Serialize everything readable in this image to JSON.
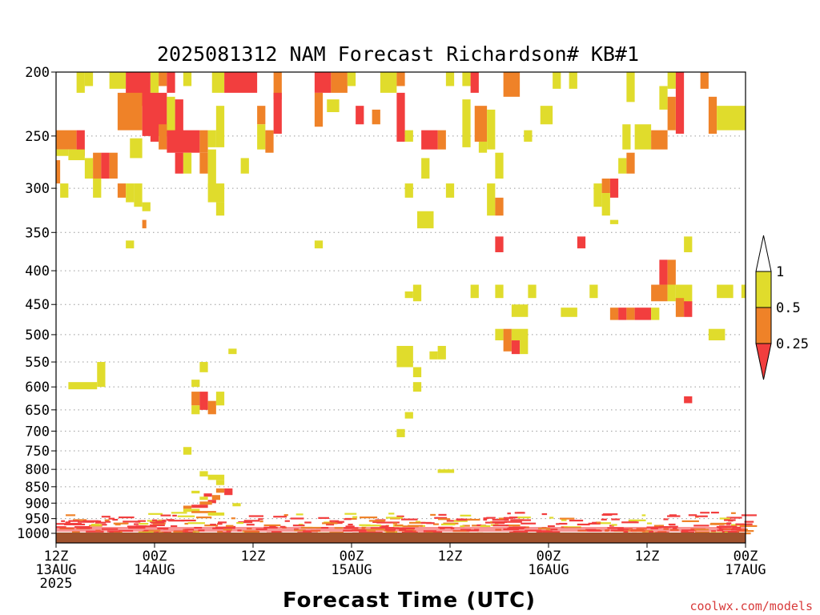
{
  "chart_data": {
    "type": "heatmap",
    "title": "2025081312 NAM Forecast Richardson# KB#1",
    "xlabel": "Forecast Time (UTC)",
    "credit": "coolwx.com/models",
    "y_axis": {
      "scale": "pressure (inverted)",
      "range": [
        1000,
        200
      ],
      "ticks": [
        "200",
        "250",
        "300",
        "350",
        "400",
        "450",
        "500",
        "550",
        "600",
        "650",
        "700",
        "750",
        "800",
        "850",
        "900",
        "950",
        "1000"
      ]
    },
    "x_axis": {
      "range_hours": [
        0,
        84
      ],
      "ticks": [
        {
          "hour": 0,
          "line1": "12Z",
          "line2": "13AUG",
          "line3": "2025"
        },
        {
          "hour": 12,
          "line1": "00Z",
          "line2": "14AUG",
          "line3": ""
        },
        {
          "hour": 24,
          "line1": "12Z",
          "line2": "",
          "line3": ""
        },
        {
          "hour": 36,
          "line1": "00Z",
          "line2": "15AUG",
          "line3": ""
        },
        {
          "hour": 48,
          "line1": "12Z",
          "line2": "",
          "line3": ""
        },
        {
          "hour": 60,
          "line1": "00Z",
          "line2": "16AUG",
          "line3": ""
        },
        {
          "hour": 72,
          "line1": "12Z",
          "line2": "",
          "line3": ""
        },
        {
          "hour": 84,
          "line1": "00Z",
          "line2": "17AUG",
          "line3": ""
        }
      ]
    },
    "legend": {
      "placement": "right",
      "labels": [
        "1",
        "0.5",
        "0.25"
      ],
      "colors": {
        "gt1": "#ffffff",
        "b05_1": "#e0dc2c",
        "b025_05": "#ef8228",
        "lt025": "#f23e3e"
      }
    },
    "colors": {
      "yellow": "#e0dc2c",
      "orange": "#ef8228",
      "red": "#f23e3e",
      "ground": "#a0522d"
    },
    "cells_note": "cells: [hour_start, hour_end, pressure_top_hPa, pressure_bottom_hPa, category]; category: y=0.5-1, o=0.25-0.5, r=<0.25",
    "cells": [
      [
        2.5,
        3.5,
        200,
        215,
        "y"
      ],
      [
        3.5,
        4.5,
        200,
        210,
        "y"
      ],
      [
        6.5,
        8.5,
        200,
        212,
        "y"
      ],
      [
        8.5,
        11.5,
        200,
        225,
        "r"
      ],
      [
        11.5,
        12.5,
        200,
        215,
        "y"
      ],
      [
        12.5,
        13.5,
        200,
        210,
        "o"
      ],
      [
        13.5,
        14.5,
        200,
        215,
        "r"
      ],
      [
        15.5,
        16.5,
        200,
        210,
        "y"
      ],
      [
        19,
        20.5,
        200,
        215,
        "y"
      ],
      [
        20.5,
        24.5,
        200,
        215,
        "r"
      ],
      [
        26.5,
        27.5,
        200,
        220,
        "o"
      ],
      [
        31.5,
        33.5,
        200,
        215,
        "r"
      ],
      [
        33.5,
        35.5,
        200,
        215,
        "o"
      ],
      [
        35.5,
        36.5,
        200,
        210,
        "y"
      ],
      [
        39.5,
        41.5,
        200,
        215,
        "y"
      ],
      [
        41.5,
        42.5,
        200,
        210,
        "o"
      ],
      [
        47.5,
        48.5,
        200,
        210,
        "y"
      ],
      [
        49.5,
        50.5,
        200,
        210,
        "y"
      ],
      [
        50.5,
        51.5,
        200,
        215,
        "r"
      ],
      [
        54.5,
        56.5,
        200,
        218,
        "o"
      ],
      [
        60.5,
        61.5,
        200,
        212,
        "y"
      ],
      [
        62.5,
        63.5,
        200,
        212,
        "y"
      ],
      [
        69.5,
        70.5,
        200,
        222,
        "y"
      ],
      [
        74.5,
        75.5,
        200,
        212,
        "y"
      ],
      [
        75.5,
        76.5,
        200,
        248,
        "r"
      ],
      [
        78.5,
        79.5,
        200,
        212,
        "o"
      ],
      [
        7.5,
        10.5,
        215,
        245,
        "o"
      ],
      [
        10.5,
        13.5,
        215,
        250,
        "r"
      ],
      [
        13.5,
        14.5,
        218,
        255,
        "y"
      ],
      [
        14.5,
        15.5,
        220,
        255,
        "r"
      ],
      [
        19.5,
        20.5,
        225,
        260,
        "y"
      ],
      [
        24.5,
        25.5,
        225,
        240,
        "o"
      ],
      [
        26.5,
        27.5,
        215,
        248,
        "r"
      ],
      [
        31.5,
        32.5,
        215,
        242,
        "o"
      ],
      [
        33,
        34.5,
        220,
        230,
        "y"
      ],
      [
        36.5,
        37.5,
        225,
        240,
        "r"
      ],
      [
        38.5,
        39.5,
        228,
        240,
        "o"
      ],
      [
        41.5,
        42.5,
        215,
        255,
        "r"
      ],
      [
        49.5,
        50.5,
        220,
        260,
        "y"
      ],
      [
        51,
        52.5,
        225,
        255,
        "o"
      ],
      [
        52.5,
        53.5,
        228,
        262,
        "y"
      ],
      [
        59,
        60.5,
        225,
        240,
        "y"
      ],
      [
        74.5,
        75.5,
        218,
        245,
        "o"
      ],
      [
        79.5,
        80.5,
        218,
        248,
        "o"
      ],
      [
        80.5,
        84,
        225,
        245,
        "y"
      ],
      [
        73.5,
        74.5,
        210,
        228,
        "y"
      ],
      [
        11.5,
        12.5,
        245,
        255,
        "r"
      ],
      [
        12.5,
        13.5,
        240,
        262,
        "o"
      ],
      [
        13.5,
        17.5,
        245,
        265,
        "r"
      ],
      [
        17.5,
        18.5,
        245,
        265,
        "o"
      ],
      [
        18.5,
        19.5,
        245,
        260,
        "y"
      ],
      [
        9,
        10.5,
        252,
        270,
        "y"
      ],
      [
        0,
        2.5,
        245,
        262,
        "o"
      ],
      [
        2.5,
        3.5,
        245,
        268,
        "r"
      ],
      [
        0,
        1.5,
        262,
        268,
        "y"
      ],
      [
        1.5,
        3.5,
        262,
        272,
        "y"
      ],
      [
        24.5,
        25.5,
        240,
        262,
        "y"
      ],
      [
        25.5,
        26.5,
        245,
        265,
        "o"
      ],
      [
        42.5,
        43.5,
        245,
        255,
        "y"
      ],
      [
        44.5,
        46.5,
        245,
        262,
        "r"
      ],
      [
        46.5,
        47.5,
        245,
        262,
        "o"
      ],
      [
        51.5,
        52.5,
        255,
        265,
        "y"
      ],
      [
        57,
        58,
        245,
        255,
        "y"
      ],
      [
        69,
        70,
        240,
        262,
        "y"
      ],
      [
        70.5,
        72.5,
        240,
        262,
        "y"
      ],
      [
        72.5,
        74.5,
        245,
        262,
        "o"
      ],
      [
        3.5,
        4.5,
        270,
        290,
        "y"
      ],
      [
        4.5,
        5.5,
        265,
        290,
        "o"
      ],
      [
        5.5,
        6.5,
        265,
        290,
        "r"
      ],
      [
        6.5,
        7.5,
        265,
        290,
        "o"
      ],
      [
        14.5,
        15.5,
        265,
        285,
        "r"
      ],
      [
        15.5,
        16.5,
        265,
        285,
        "y"
      ],
      [
        17.5,
        18.5,
        265,
        285,
        "o"
      ],
      [
        18.5,
        19.5,
        262,
        300,
        "y"
      ],
      [
        22.5,
        23.5,
        270,
        285,
        "y"
      ],
      [
        44.5,
        45.5,
        270,
        290,
        "y"
      ],
      [
        53.5,
        54.5,
        265,
        290,
        "y"
      ],
      [
        68.5,
        69.5,
        270,
        285,
        "y"
      ],
      [
        69.5,
        70.5,
        265,
        285,
        "o"
      ],
      [
        0,
        0.5,
        272,
        295,
        "o"
      ],
      [
        0.5,
        1.5,
        295,
        310,
        "y"
      ],
      [
        4.5,
        5.5,
        290,
        310,
        "y"
      ],
      [
        7.5,
        8.5,
        295,
        310,
        "o"
      ],
      [
        8.5,
        9.5,
        295,
        315,
        "y"
      ],
      [
        9.5,
        10.5,
        295,
        320,
        "y"
      ],
      [
        10.5,
        11.5,
        315,
        325,
        "y"
      ],
      [
        18.5,
        20.5,
        295,
        315,
        "y"
      ],
      [
        19.5,
        20.5,
        315,
        330,
        "y"
      ],
      [
        42.5,
        43.5,
        295,
        310,
        "y"
      ],
      [
        47.5,
        48.5,
        295,
        310,
        "y"
      ],
      [
        52.5,
        53.5,
        295,
        330,
        "y"
      ],
      [
        53.5,
        54.5,
        310,
        330,
        "o"
      ],
      [
        65.5,
        66.5,
        295,
        320,
        "y"
      ],
      [
        66.5,
        67.5,
        290,
        305,
        "o"
      ],
      [
        67.5,
        68.5,
        290,
        310,
        "r"
      ],
      [
        66.5,
        67.5,
        305,
        330,
        "y"
      ],
      [
        44,
        46,
        325,
        345,
        "y"
      ],
      [
        10.5,
        11,
        335,
        345,
        "o"
      ],
      [
        8.5,
        9.5,
        360,
        370,
        "y"
      ],
      [
        31.5,
        32.5,
        360,
        370,
        "y"
      ],
      [
        53.5,
        54.5,
        355,
        375,
        "r"
      ],
      [
        63.5,
        64.5,
        355,
        370,
        "r"
      ],
      [
        76.5,
        77.5,
        355,
        375,
        "y"
      ],
      [
        67.5,
        68.5,
        335,
        340,
        "y"
      ],
      [
        73.5,
        74.5,
        385,
        420,
        "r"
      ],
      [
        74.5,
        75.5,
        385,
        420,
        "o"
      ],
      [
        72.5,
        74.5,
        420,
        445,
        "o"
      ],
      [
        74.5,
        75.5,
        420,
        445,
        "y"
      ],
      [
        75.5,
        77.5,
        420,
        450,
        "y"
      ],
      [
        75.5,
        76.5,
        440,
        470,
        "o"
      ],
      [
        76.5,
        77.5,
        445,
        470,
        "r"
      ],
      [
        67.5,
        68.5,
        455,
        475,
        "o"
      ],
      [
        68.5,
        69.5,
        455,
        475,
        "r"
      ],
      [
        69.5,
        70.5,
        455,
        475,
        "o"
      ],
      [
        70.5,
        72.5,
        455,
        475,
        "r"
      ],
      [
        72.5,
        73.5,
        455,
        475,
        "y"
      ],
      [
        43.5,
        44.5,
        420,
        445,
        "y"
      ],
      [
        42.5,
        43.5,
        430,
        440,
        "y"
      ],
      [
        50.5,
        51.5,
        420,
        440,
        "y"
      ],
      [
        53.5,
        54.5,
        420,
        440,
        "y"
      ],
      [
        57.5,
        58.5,
        420,
        440,
        "y"
      ],
      [
        65,
        66,
        420,
        440,
        "y"
      ],
      [
        80.5,
        82.5,
        420,
        440,
        "y"
      ],
      [
        83.5,
        84,
        420,
        440,
        "y"
      ],
      [
        55.5,
        57.5,
        450,
        470,
        "y"
      ],
      [
        61.5,
        63.5,
        455,
        470,
        "y"
      ],
      [
        53.5,
        54.5,
        490,
        510,
        "y"
      ],
      [
        54.5,
        55.5,
        490,
        530,
        "o"
      ],
      [
        55.5,
        56.5,
        510,
        535,
        "r"
      ],
      [
        55.5,
        57.5,
        490,
        510,
        "y"
      ],
      [
        56.5,
        57.5,
        510,
        535,
        "y"
      ],
      [
        79.5,
        81.5,
        490,
        510,
        "y"
      ],
      [
        41.5,
        43.5,
        520,
        560,
        "y"
      ],
      [
        43.5,
        44.5,
        560,
        580,
        "y"
      ],
      [
        45.5,
        46.5,
        530,
        545,
        "y"
      ],
      [
        46.5,
        47.5,
        520,
        545,
        "y"
      ],
      [
        43.5,
        44.5,
        590,
        610,
        "y"
      ],
      [
        17.5,
        18.5,
        550,
        570,
        "y"
      ],
      [
        21,
        22,
        525,
        535,
        "y"
      ],
      [
        5,
        6,
        550,
        600,
        "y"
      ],
      [
        1.5,
        5,
        590,
        605,
        "y"
      ],
      [
        16.5,
        17.5,
        585,
        600,
        "y"
      ],
      [
        16.5,
        17.5,
        610,
        640,
        "o"
      ],
      [
        17.5,
        18.5,
        610,
        650,
        "r"
      ],
      [
        18.5,
        19.5,
        630,
        660,
        "o"
      ],
      [
        19.5,
        20.5,
        610,
        640,
        "y"
      ],
      [
        16.5,
        17.5,
        640,
        660,
        "y"
      ],
      [
        76.5,
        77.5,
        620,
        635,
        "r"
      ],
      [
        42.5,
        43.5,
        655,
        670,
        "y"
      ],
      [
        41.5,
        42.5,
        695,
        715,
        "y"
      ],
      [
        15.5,
        16.5,
        740,
        760,
        "y"
      ],
      [
        46.5,
        48.5,
        800,
        810,
        "y"
      ],
      [
        17.5,
        18.5,
        805,
        820,
        "y"
      ],
      [
        18.5,
        20.5,
        815,
        830,
        "y"
      ],
      [
        19.5,
        20.5,
        830,
        845,
        "y"
      ],
      [
        16.5,
        17.5,
        862,
        870,
        "y"
      ],
      [
        19.5,
        20.5,
        855,
        868,
        "o"
      ],
      [
        20.5,
        21.5,
        855,
        875,
        "r"
      ],
      [
        18,
        19,
        870,
        880,
        "r"
      ],
      [
        19,
        20,
        875,
        890,
        "o"
      ],
      [
        17.5,
        18.5,
        880,
        890,
        "y"
      ],
      [
        18.5,
        19.5,
        890,
        900,
        "r"
      ],
      [
        17.5,
        19,
        895,
        905,
        "o"
      ],
      [
        16.5,
        18.5,
        905,
        915,
        "r"
      ],
      [
        15.5,
        16.5,
        908,
        918,
        "o"
      ],
      [
        15.5,
        17.5,
        918,
        928,
        "y"
      ],
      [
        16.5,
        19.5,
        925,
        932,
        "o"
      ],
      [
        18.5,
        20.5,
        930,
        940,
        "y"
      ],
      [
        21.5,
        22.5,
        900,
        910,
        "y"
      ]
    ]
  }
}
